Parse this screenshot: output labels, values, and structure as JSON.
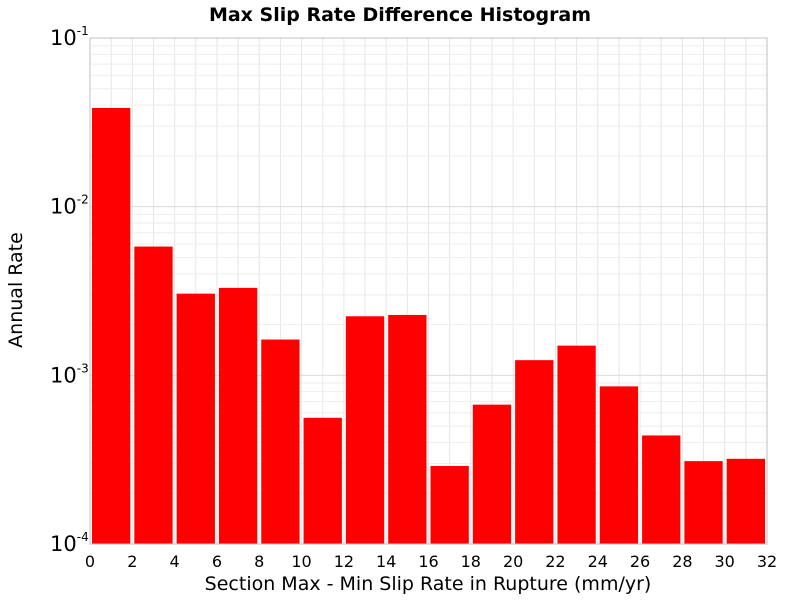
{
  "chart_data": {
    "type": "bar",
    "title": "Max Slip Rate Difference Histogram",
    "xlabel": "Section Max - Min Slip Rate in Rupture (mm/yr)",
    "ylabel": "Annual Rate",
    "xlim": [
      0,
      32
    ],
    "ylim": [
      0.0001,
      0.1
    ],
    "yscale": "log",
    "grid": true,
    "x_ticks": [
      "0",
      "2",
      "4",
      "6",
      "8",
      "10",
      "12",
      "14",
      "16",
      "18",
      "20",
      "22",
      "24",
      "26",
      "28",
      "30",
      "32"
    ],
    "y_ticks": [
      {
        "base": "10",
        "exp": "-4",
        "value": 0.0001
      },
      {
        "base": "10",
        "exp": "-3",
        "value": 0.001
      },
      {
        "base": "10",
        "exp": "-2",
        "value": 0.01
      },
      {
        "base": "10",
        "exp": "-1",
        "value": 0.1
      }
    ],
    "bin_width": 2,
    "bar_color": "#ff0000",
    "x": [
      1,
      3,
      5,
      7,
      9,
      11,
      13,
      15,
      17,
      19,
      21,
      23,
      25,
      27,
      29,
      31
    ],
    "values": [
      0.0385,
      0.0058,
      0.00305,
      0.0033,
      0.00163,
      0.00056,
      0.00224,
      0.00228,
      0.00029,
      0.00067,
      0.00123,
      0.0015,
      0.00086,
      0.00044,
      0.00031,
      0.00032
    ]
  }
}
